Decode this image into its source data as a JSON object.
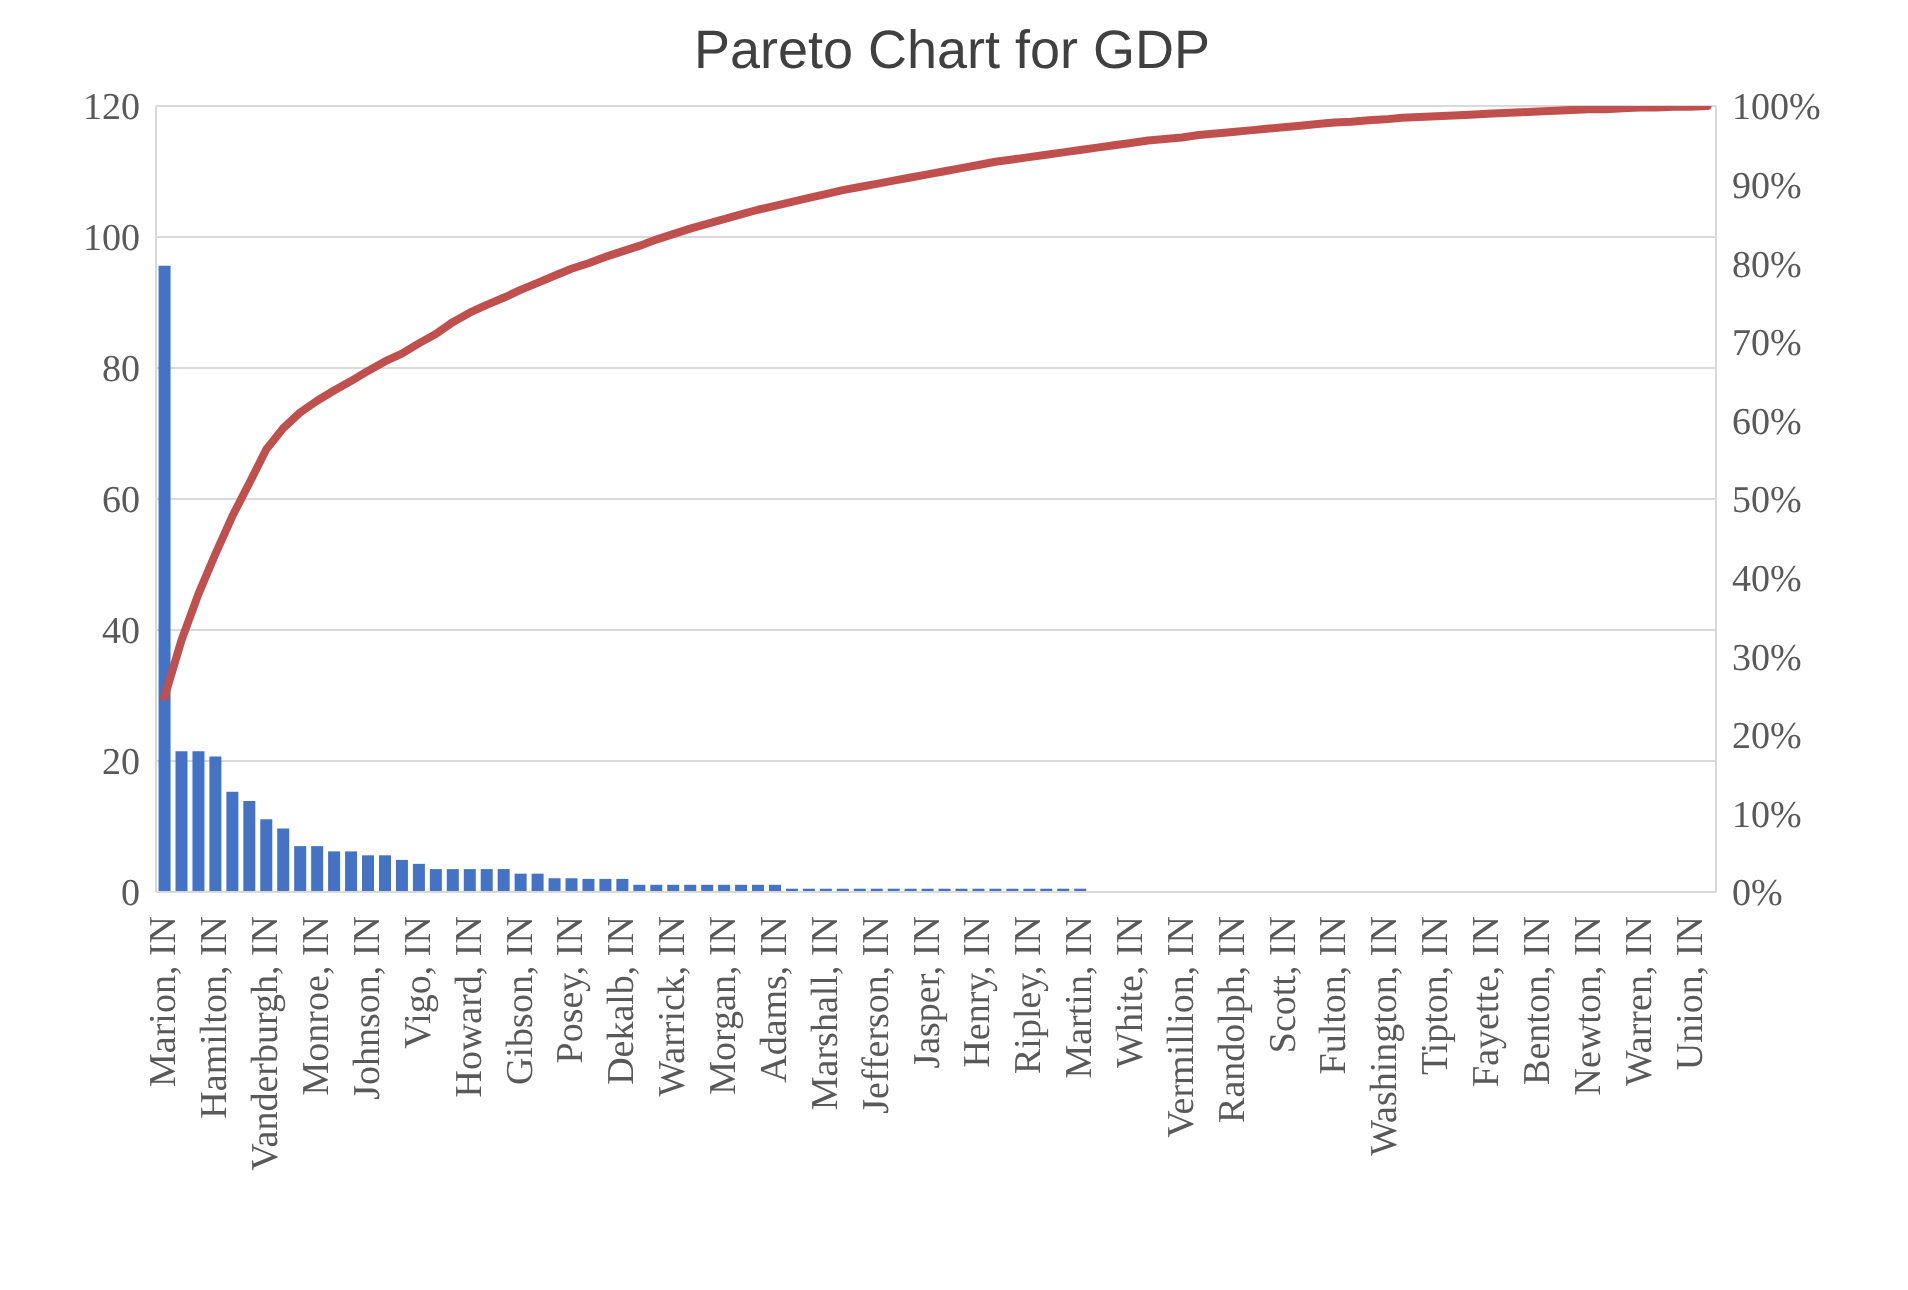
{
  "chart_data": {
    "type": "bar",
    "title": "Pareto Chart for GDP",
    "categories": [
      "Marion, IN",
      null,
      null,
      "Hamilton, IN",
      null,
      null,
      "Vanderburgh, IN",
      null,
      null,
      "Monroe, IN",
      null,
      null,
      "Johnson, IN",
      null,
      null,
      "Vigo, IN",
      null,
      null,
      "Howard, IN",
      null,
      null,
      "Gibson, IN",
      null,
      null,
      "Posey, IN",
      null,
      null,
      "Dekalb, IN",
      null,
      null,
      "Warrick, IN",
      null,
      null,
      "Morgan, IN",
      null,
      null,
      "Adams, IN",
      null,
      null,
      "Marshall, IN",
      null,
      null,
      "Jefferson, IN",
      null,
      null,
      "Jasper, IN",
      null,
      null,
      "Henry, IN",
      null,
      null,
      "Ripley, IN",
      null,
      null,
      "Martin, IN",
      null,
      null,
      "White, IN",
      null,
      null,
      "Vermillion, IN",
      null,
      null,
      "Randolph, IN",
      null,
      null,
      "Scott, IN",
      null,
      null,
      "Fulton, IN",
      null,
      null,
      "Washington, IN",
      null,
      null,
      "Tipton, IN",
      null,
      null,
      "Fayette, IN",
      null,
      null,
      "Benton, IN",
      null,
      null,
      "Newton, IN",
      null,
      null,
      "Warren, IN",
      null,
      null,
      "Union, IN",
      null
    ],
    "series": [
      {
        "color": "#4472c4",
        "values": [
          95.6,
          21.5,
          21.5,
          20.7,
          15.3,
          13.9,
          11.1,
          9.7,
          7,
          7,
          6.2,
          6.2,
          5.6,
          5.6,
          4.9,
          4.3,
          3.5,
          3.5,
          3.5,
          3.5,
          3.5,
          2.8,
          2.8,
          2.1,
          2.1,
          2,
          2,
          2,
          1.1,
          1.1,
          1.1,
          1.1,
          1.1,
          1.1,
          1.1,
          1.1,
          1.1,
          0.5,
          0.5,
          0.5,
          0.5,
          0.5,
          0.5,
          0.5,
          0.5,
          0.5,
          0.5,
          0.5,
          0.5,
          0.5,
          0.5,
          0.5,
          0.5,
          0.5,
          0.5,
          null,
          null,
          null,
          null,
          null,
          null,
          null,
          null,
          null,
          null,
          null,
          null,
          null,
          null,
          null,
          null,
          null,
          null,
          null,
          null,
          null,
          null,
          null,
          null,
          null,
          null,
          null,
          null,
          null,
          null,
          null,
          null,
          null,
          null,
          null,
          null,
          null
        ]
      },
      {
        "type": "line",
        "axis": "y2",
        "color": "#c0504d",
        "values": [
          24.8,
          32,
          37.9,
          43,
          47.8,
          52,
          56.3,
          59,
          61,
          62.5,
          63.8,
          65,
          66.3,
          67.5,
          68.5,
          69.8,
          71,
          72.5,
          73.7,
          74.7,
          75.6,
          76.6,
          77.5,
          78.4,
          79.3,
          80,
          80.8,
          81.5,
          82.2,
          83,
          83.7,
          84.4,
          85,
          85.6,
          86.2,
          86.8,
          87.3,
          87.8,
          88.3,
          88.8,
          89.3,
          89.7,
          90.1,
          90.5,
          90.9,
          91.3,
          91.7,
          92.1,
          92.5,
          92.9,
          93.2,
          93.5,
          93.8,
          94.1,
          94.4,
          94.7,
          95,
          95.3,
          95.6,
          95.8,
          96,
          96.3,
          96.5,
          96.7,
          96.9,
          97.1,
          97.3,
          97.5,
          97.7,
          97.9,
          98,
          98.2,
          98.3,
          98.5,
          98.6,
          98.7,
          98.8,
          98.9,
          99,
          99.1,
          99.2,
          99.3,
          99.4,
          99.5,
          99.6,
          99.6,
          99.7,
          99.8,
          99.8,
          99.9,
          99.9,
          100
        ]
      }
    ],
    "ylim": [
      0,
      120
    ],
    "yticks": [
      0,
      20,
      40,
      60,
      80,
      100,
      120
    ],
    "y2lim": [
      0,
      100
    ],
    "y2ticks": [
      {
        "value": 0,
        "label": "0%"
      },
      {
        "value": 10,
        "label": "10%"
      },
      {
        "value": 20,
        "label": "20%"
      },
      {
        "value": 30,
        "label": "30%"
      },
      {
        "value": 40,
        "label": "40%"
      },
      {
        "value": 50,
        "label": "50%"
      },
      {
        "value": 60,
        "label": "60%"
      },
      {
        "value": 70,
        "label": "70%"
      },
      {
        "value": 80,
        "label": "80%"
      },
      {
        "value": 90,
        "label": "90%"
      },
      {
        "value": 100,
        "label": "100%"
      }
    ],
    "grid": "y",
    "legend": false,
    "marker": "none",
    "line_style": "solid"
  }
}
